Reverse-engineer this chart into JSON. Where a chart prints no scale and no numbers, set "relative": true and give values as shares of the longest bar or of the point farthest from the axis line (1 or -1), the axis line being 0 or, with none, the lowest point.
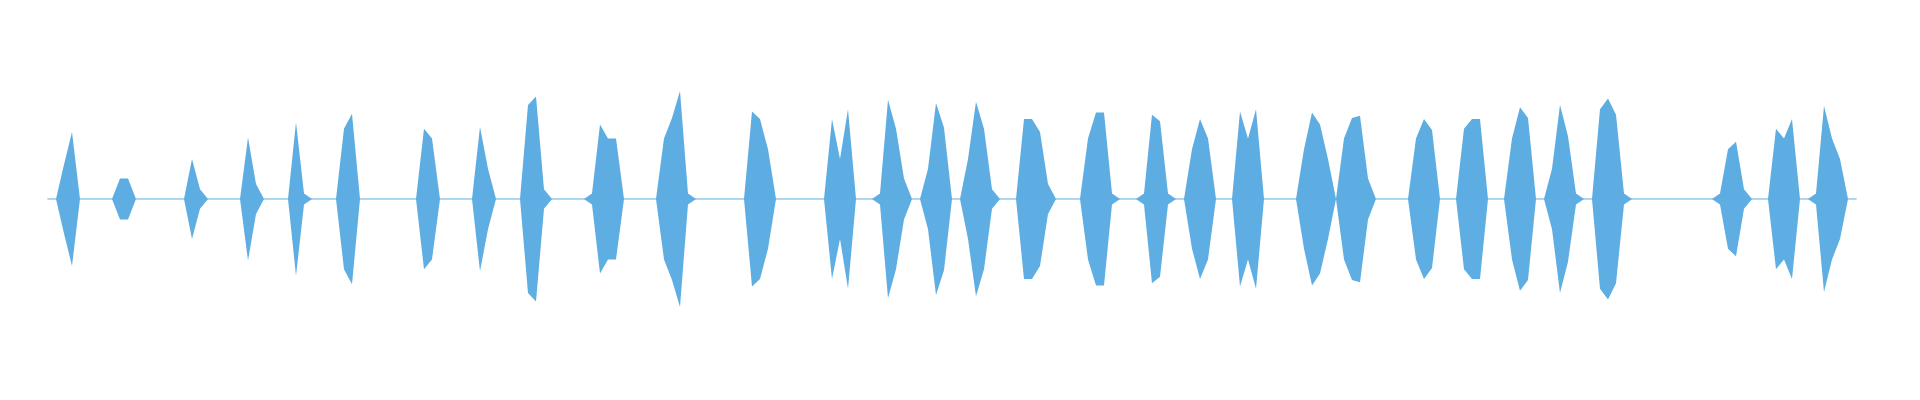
{
  "chart_data": {
    "type": "area",
    "relative": true,
    "categories": [
      null,
      null,
      null,
      null,
      null,
      null,
      null,
      null,
      null,
      null,
      null,
      null,
      null,
      null,
      null,
      null,
      null,
      null,
      null,
      null,
      null,
      null,
      null,
      null,
      null,
      null,
      null,
      null,
      null,
      null,
      null,
      null,
      null,
      null,
      null,
      null,
      null,
      null,
      null,
      null,
      null,
      null,
      null,
      null,
      null,
      null,
      null,
      null,
      null,
      null,
      null,
      null,
      null,
      null,
      null,
      null,
      null,
      null,
      null,
      null,
      null,
      null,
      null,
      null,
      null,
      null,
      null,
      null,
      null,
      null,
      null,
      null,
      null,
      null,
      null,
      null,
      null,
      null,
      null,
      null,
      null,
      null,
      null,
      null,
      null,
      null,
      null,
      null,
      null,
      null,
      null,
      null,
      null,
      null,
      null,
      null,
      null,
      null,
      null,
      null,
      null,
      null,
      null,
      null,
      null,
      null,
      null,
      null,
      null,
      null,
      null,
      null,
      null,
      null,
      null,
      null,
      null,
      null,
      null,
      null,
      null,
      null,
      null,
      null,
      null,
      null,
      null,
      null,
      null,
      null,
      null,
      null,
      null,
      null,
      null,
      null,
      null,
      null,
      null,
      null,
      null,
      null,
      null,
      null,
      null,
      null,
      null,
      null,
      null,
      null,
      null,
      null,
      null,
      null,
      null,
      null,
      null,
      null,
      null,
      null,
      null,
      null,
      null,
      null,
      null,
      null,
      null,
      null,
      null,
      null,
      null,
      null,
      null,
      null,
      null,
      null,
      null,
      null,
      null,
      null,
      null,
      null,
      null,
      null,
      null,
      null,
      null,
      null,
      null,
      null,
      null,
      null,
      null,
      null,
      null,
      null,
      null,
      null,
      null,
      null,
      null,
      null,
      null,
      null,
      null,
      null,
      null,
      null,
      null,
      null,
      null,
      null,
      null,
      null,
      null,
      null,
      null,
      null,
      null,
      null,
      null,
      null,
      null,
      null,
      null,
      null,
      null
    ],
    "series": [
      {
        "color": "#5dade2",
        "values": [
          0,
          0,
          0.32,
          0.62,
          0,
          0,
          0,
          0,
          0,
          0.19,
          0.19,
          0,
          0,
          0,
          0,
          0,
          0,
          0,
          0.37,
          0.09,
          0,
          0,
          0,
          0,
          0,
          0.57,
          0.14,
          0,
          0,
          0,
          0,
          0.71,
          0.05,
          0,
          0,
          0,
          0,
          0.65,
          0.79,
          0,
          0,
          0,
          0,
          0,
          0,
          0,
          0,
          0.65,
          0.56,
          0,
          0,
          0,
          0,
          0,
          0.67,
          0.28,
          0,
          0,
          0,
          0,
          0.87,
          0.95,
          0.09,
          0,
          0,
          0,
          0,
          0,
          0.05,
          0.69,
          0.56,
          0.56,
          0,
          0,
          0,
          0,
          0,
          0.56,
          0.75,
          1,
          0.05,
          0,
          0,
          0,
          0,
          0,
          0,
          0,
          0.81,
          0.74,
          0.46,
          0,
          0,
          0,
          0,
          0,
          0,
          0,
          0.74,
          0.37,
          0.83,
          0,
          0,
          0,
          0.05,
          0.92,
          0.65,
          0.19,
          0,
          0,
          0.28,
          0.89,
          0.66,
          0,
          0,
          0.37,
          0.9,
          0.65,
          0.09,
          0,
          0,
          0,
          0.74,
          0.74,
          0.62,
          0.14,
          0,
          0,
          0,
          0,
          0.56,
          0.8,
          0.8,
          0.05,
          0,
          0,
          0,
          0.05,
          0.78,
          0.72,
          0.05,
          0,
          0,
          0.46,
          0.74,
          0.56,
          0,
          0,
          0,
          0.81,
          0.56,
          0.83,
          0,
          0,
          0,
          0,
          0,
          0.46,
          0.8,
          0.69,
          0.37,
          0,
          0.56,
          0.75,
          0.77,
          0.19,
          0,
          0,
          0,
          0,
          0,
          0.56,
          0.74,
          0.64,
          0,
          0,
          0,
          0.65,
          0.74,
          0.74,
          0,
          0,
          0,
          0.56,
          0.85,
          0.75,
          0,
          0,
          0.28,
          0.87,
          0.58,
          0.05,
          0,
          0,
          0.83,
          0.93,
          0.78,
          0.05,
          0,
          0,
          0,
          0,
          0,
          0,
          0,
          0,
          0,
          0,
          0,
          0.05,
          0.46,
          0.53,
          0.09,
          0,
          0,
          0,
          0.65,
          0.56,
          0.74,
          0,
          0,
          0.05,
          0.86,
          0.56,
          0.37,
          0,
          0
        ]
      },
      {
        "color": "#5eaee3",
        "values": [
          0,
          0,
          -0.32,
          -0.62,
          0,
          0,
          0,
          0,
          0,
          -0.19,
          -0.19,
          0,
          0,
          0,
          0,
          0,
          0,
          0,
          -0.37,
          -0.09,
          0,
          0,
          0,
          0,
          0,
          -0.57,
          -0.14,
          0,
          0,
          0,
          0,
          -0.71,
          -0.05,
          0,
          0,
          0,
          0,
          -0.65,
          -0.79,
          0,
          0,
          0,
          0,
          0,
          0,
          0,
          0,
          -0.65,
          -0.56,
          0,
          0,
          0,
          0,
          0,
          -0.67,
          -0.28,
          0,
          0,
          0,
          0,
          -0.87,
          -0.95,
          -0.09,
          0,
          0,
          0,
          0,
          0,
          -0.05,
          -0.69,
          -0.56,
          -0.56,
          0,
          0,
          0,
          0,
          0,
          -0.56,
          -0.75,
          -1,
          -0.05,
          0,
          0,
          0,
          0,
          0,
          0,
          0,
          -0.81,
          -0.74,
          -0.46,
          0,
          0,
          0,
          0,
          0,
          0,
          0,
          -0.74,
          -0.37,
          -0.83,
          0,
          0,
          0,
          -0.05,
          -0.92,
          -0.65,
          -0.19,
          0,
          0,
          -0.28,
          -0.89,
          -0.66,
          0,
          0,
          -0.37,
          -0.9,
          -0.65,
          -0.09,
          0,
          0,
          0,
          -0.74,
          -0.74,
          -0.62,
          -0.14,
          0,
          0,
          0,
          0,
          -0.56,
          -0.8,
          -0.8,
          -0.05,
          0,
          0,
          0,
          -0.05,
          -0.78,
          -0.72,
          -0.05,
          0,
          0,
          -0.46,
          -0.74,
          -0.56,
          0,
          0,
          0,
          -0.81,
          -0.56,
          -0.83,
          0,
          0,
          0,
          0,
          0,
          -0.46,
          -0.8,
          -0.69,
          -0.37,
          0,
          -0.56,
          -0.75,
          -0.77,
          -0.19,
          0,
          0,
          0,
          0,
          0,
          -0.56,
          -0.74,
          -0.64,
          0,
          0,
          0,
          -0.65,
          -0.74,
          -0.74,
          0,
          0,
          0,
          -0.56,
          -0.85,
          -0.75,
          0,
          0,
          -0.28,
          -0.87,
          -0.58,
          -0.05,
          0,
          0,
          -0.83,
          -0.93,
          -0.78,
          -0.05,
          0,
          0,
          0,
          0,
          0,
          0,
          0,
          0,
          0,
          0,
          0,
          -0.05,
          -0.46,
          -0.53,
          -0.09,
          0,
          0,
          0,
          -0.65,
          -0.56,
          -0.74,
          0,
          0,
          -0.05,
          -0.86,
          -0.56,
          -0.37,
          0,
          0
        ]
      }
    ]
  }
}
